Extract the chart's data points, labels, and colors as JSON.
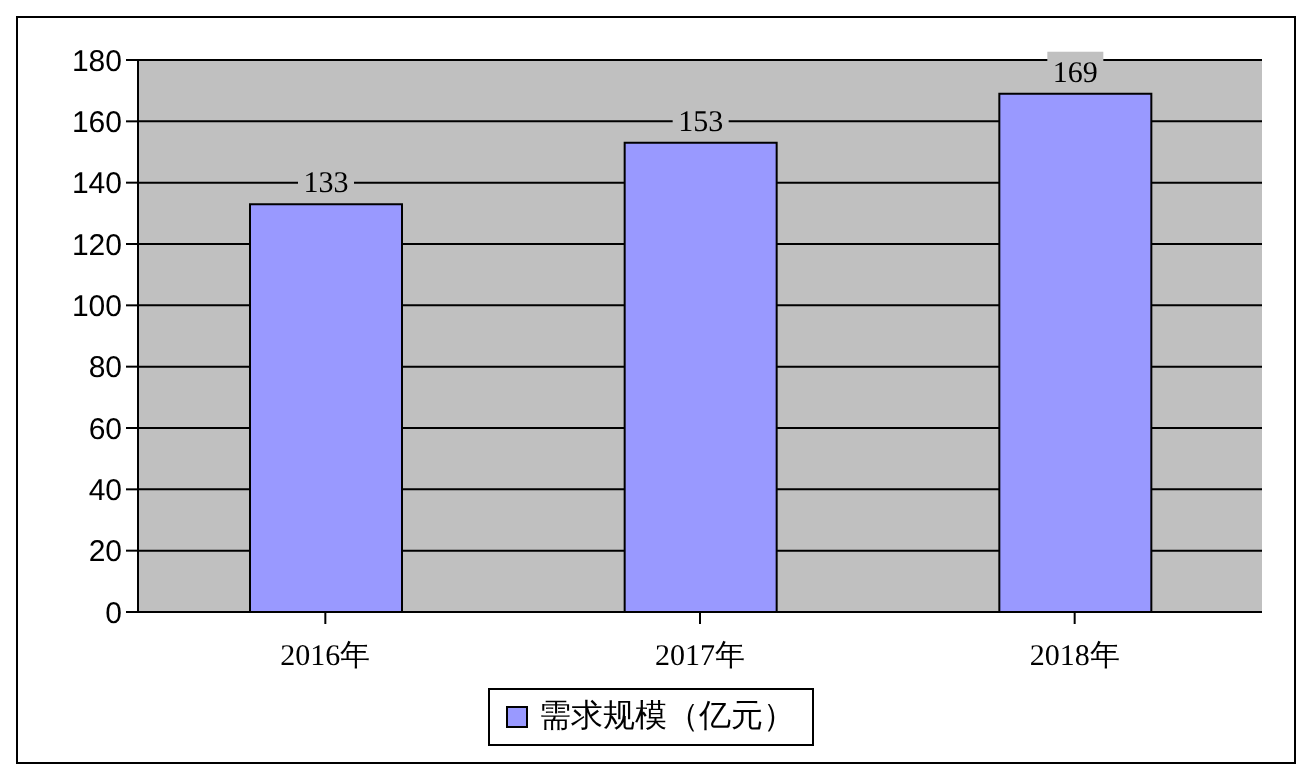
{
  "chart_data": {
    "type": "bar",
    "categories": [
      "2016年",
      "2017年",
      "2018年"
    ],
    "series": [
      {
        "name": "需求规模（亿元）",
        "color": "#9999ff",
        "values": [
          133,
          153,
          169
        ]
      }
    ],
    "ylim": [
      0,
      180
    ],
    "yticks": [
      0,
      20,
      40,
      60,
      80,
      100,
      120,
      140,
      160,
      180
    ],
    "grid": "y",
    "legend": "bottom",
    "data_labels": true
  }
}
